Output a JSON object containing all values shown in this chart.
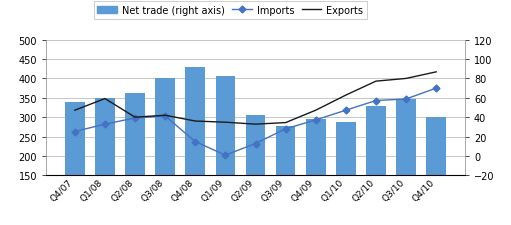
{
  "categories": [
    "Q4/07",
    "Q1/08",
    "Q2/08",
    "Q3/08",
    "Q4/08",
    "Q1/09",
    "Q2/09",
    "Q3/09",
    "Q4/09",
    "Q1/10",
    "Q2/10",
    "Q3/10",
    "Q4/10"
  ],
  "bar_values": [
    338,
    350,
    363,
    400,
    430,
    407,
    305,
    278,
    295,
    288,
    328,
    348,
    300
  ],
  "imports": [
    263,
    282,
    298,
    303,
    237,
    202,
    232,
    270,
    293,
    318,
    343,
    347,
    375
  ],
  "exports": [
    318,
    348,
    300,
    305,
    290,
    287,
    282,
    286,
    318,
    357,
    393,
    400,
    417
  ],
  "bar_color": "#5B9BD5",
  "imports_color": "#4472C4",
  "exports_color": "#1a1a1a",
  "left_ylim": [
    150,
    500
  ],
  "right_ylim": [
    -20,
    120
  ],
  "left_yticks": [
    150,
    200,
    250,
    300,
    350,
    400,
    450,
    500
  ],
  "right_yticks": [
    -20,
    0,
    20,
    40,
    60,
    80,
    100,
    120
  ],
  "legend_labels": [
    "Net trade (right axis)",
    "Imports",
    "Exports"
  ],
  "background_color": "#ffffff",
  "grid_color": "#b0b0b0"
}
